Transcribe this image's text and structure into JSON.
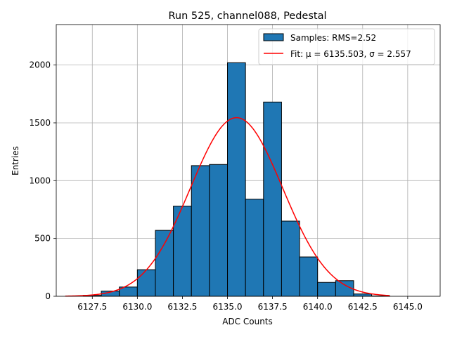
{
  "chart_data": {
    "type": "bar",
    "title": "Run 525, channel088, Pedestal",
    "xlabel": "ADC Counts",
    "ylabel": "Entries",
    "xlim": [
      6125.5,
      6146.8
    ],
    "ylim": [
      0,
      2350
    ],
    "grid": true,
    "legend_position": "top-right",
    "x_ticks": [
      6127.5,
      6130.0,
      6132.5,
      6135.0,
      6137.5,
      6140.0,
      6142.5,
      6145.0
    ],
    "x_tick_labels": [
      "6127.5",
      "6130.0",
      "6132.5",
      "6135.0",
      "6137.5",
      "6140.0",
      "6142.5",
      "6145.0"
    ],
    "y_ticks": [
      0,
      500,
      1000,
      1500,
      2000
    ],
    "y_tick_labels": [
      "0",
      "500",
      "1000",
      "1500",
      "2000"
    ],
    "bins": {
      "edges": [
        6127,
        6128,
        6129,
        6130,
        6131,
        6132,
        6133,
        6134,
        6135,
        6136,
        6137,
        6138,
        6139,
        6140,
        6141,
        6142,
        6143,
        6144
      ],
      "counts": [
        8,
        45,
        80,
        230,
        570,
        780,
        1130,
        1140,
        2020,
        840,
        1680,
        650,
        340,
        120,
        135,
        20,
        3
      ]
    },
    "fit": {
      "mu": 6135.503,
      "sigma": 2.557,
      "amplitude": 1545,
      "x_range": [
        6126.0,
        6144.0
      ]
    },
    "legend": {
      "samples_label": "Samples: RMS=2.52",
      "fit_label": "Fit: μ = 6135.503, σ = 2.557"
    },
    "colors": {
      "bar_fill": "#1f77b4",
      "bar_edge": "#000000",
      "fit_line": "#ff0000"
    }
  }
}
